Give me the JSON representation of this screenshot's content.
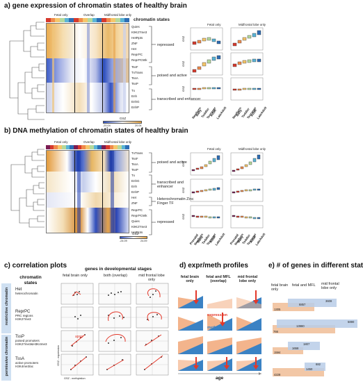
{
  "panel_a": {
    "title": "a) gene expression of chromatin states of healthy brain",
    "header_labels": [
      "Fetal only",
      "Overlap",
      "Midfrontal lobe only"
    ],
    "chromatin_states_title": "chromatin states",
    "states": [
      "Quies",
      "K9K27me3",
      "HetRpts",
      "ZNF",
      "Het",
      "ReprPC",
      "ReprPCWk",
      "TssF",
      "TxTrans",
      "TssA",
      "TssP",
      "Tx",
      "Enh",
      "EnhG",
      "EnhP"
    ],
    "groups": [
      "repressed",
      "poised and active",
      "transcribed and enhancer"
    ],
    "legend_title": "GSZ",
    "legend_min": "-20.04",
    "legend_max": "20.04",
    "boxplot_headers": [
      "Fetal only",
      "Midfrontal lobe only"
    ],
    "y_label": "GSZ",
    "x_ticks": [
      "Newborn",
      "Baby",
      "Toddler",
      "Teenager",
      "Adult",
      "LateAdult"
    ]
  },
  "panel_b": {
    "title": "b) DNA methylation of chromatin states of healthy brain",
    "header_labels": [
      "Fetal only",
      "Overlap",
      "Midfrontal lobe only"
    ],
    "states": [
      "TxTrans",
      "TssF",
      "TssA",
      "TssP",
      "Tx",
      "EnhG",
      "Enh",
      "EnhP",
      "Het",
      "ZNF",
      "ReprPC",
      "ReprPCWk",
      "Quies",
      "K9K27me3",
      "HetRpts"
    ],
    "groups": [
      "poised and active",
      "transcribed and enhancer",
      "Heterochromatin Zinc Finger TF",
      "repressed"
    ],
    "legend_title": "GSZ",
    "legend_min": "-24.09",
    "legend_max": "24.09",
    "boxplot_headers": [
      "Fetal only",
      "Midfrontal lobe only"
    ],
    "y_label": "GSZ",
    "x_ticks": [
      "Prenatal",
      "Newborn",
      "Baby",
      "Toddler",
      "Teenager",
      "Adult",
      "LateAdult"
    ]
  },
  "panel_c": {
    "title": "c) correlation plots",
    "chromatin_states_label": "chromatin states",
    "genes_label": "genes in developmental stages",
    "columns": [
      "fetal brain only",
      "both (overlap)",
      "mid frontal lobe only"
    ],
    "side_labels": [
      "restrictive chromatin",
      "permissive chromatin"
    ],
    "rows": [
      {
        "name": "Het",
        "desc": "heterochromatin"
      },
      {
        "name": "ReprPC",
        "desc": "PRC regions H3K27me3"
      },
      {
        "name": "TssP",
        "desc": "poised promoters H3K27me3&H3K4me3"
      },
      {
        "name": "TssA",
        "desc": "active promoters H3K4me3/ac"
      }
    ],
    "age_label": "age",
    "y_axis": "GSZ - expression",
    "x_axis": "GSZ - methylation"
  },
  "panel_d": {
    "title": "d) expr/meth profiles",
    "columns": [
      "fetal brain only",
      "fetal and MFL (overlap)",
      "mid frontal lobe only"
    ],
    "expression_label": "expression",
    "methylation_label": "methylation",
    "age_label": "age",
    "colors": {
      "expression": "#f3b48c",
      "methylation": "#3b82c4",
      "arrow": "#e3382a"
    }
  },
  "panel_e": {
    "title": "e) # of genes in different states",
    "venn_labels": [
      "fetal brain only",
      "fetal and MFL",
      "mid frontal lobe only"
    ],
    "rows": [
      {
        "left": "1305",
        "mid": "6857",
        "right": "3608"
      },
      {
        "left": "766",
        "mid": "13980",
        "right": "5890"
      },
      {
        "left": "1594",
        "mid": "1658",
        "right": "1807"
      },
      {
        "left": "4228",
        "mid": "1450",
        "right": "682"
      }
    ]
  }
}
